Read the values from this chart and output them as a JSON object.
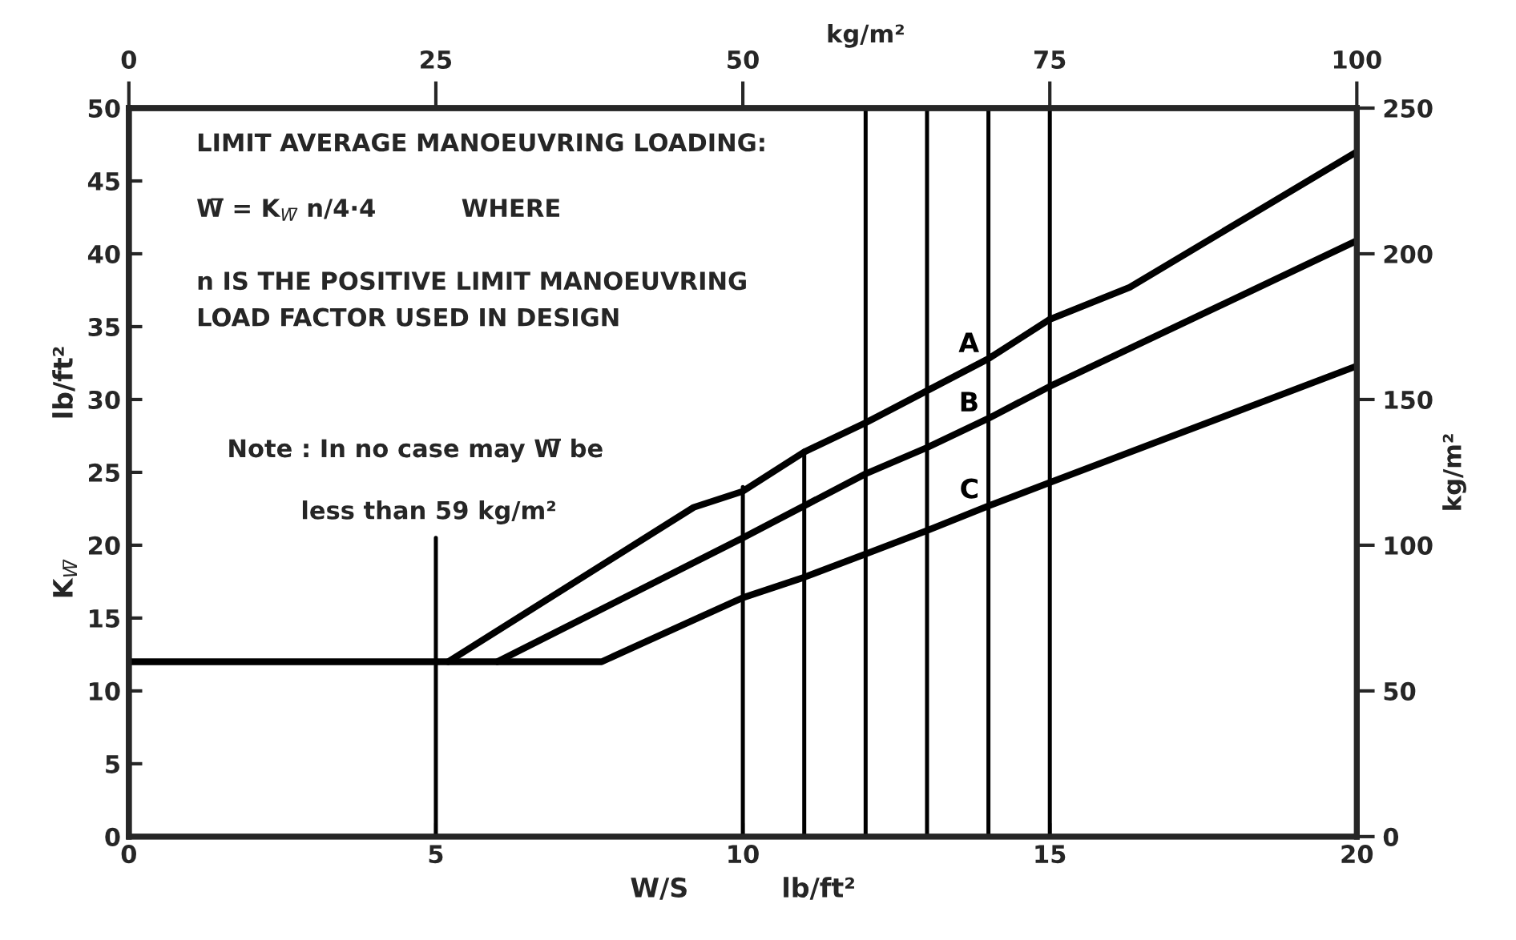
{
  "chart_data": {
    "type": "line",
    "xlabel": "W/S          lb/ft²",
    "ylabel": "K$_{W̅}$               lb/ft²",
    "x2label": "kg/m²",
    "y2label": "kg/m²",
    "xlim": [
      0,
      20
    ],
    "xticks": [
      0,
      5,
      10,
      15,
      20
    ],
    "ylim": [
      0,
      50
    ],
    "yticks": [
      0,
      5,
      10,
      15,
      20,
      25,
      30,
      35,
      40,
      45,
      50
    ],
    "x2lim": [
      0,
      100
    ],
    "x2ticks": [
      0,
      25,
      50,
      75,
      100
    ],
    "y2lim": [
      0,
      250
    ],
    "y2ticks": [
      0,
      50,
      100,
      150,
      200,
      250
    ],
    "grid": false,
    "legend": false,
    "marker": "none",
    "line_style": "solid",
    "series": [
      {
        "name": "A",
        "color": "#000000",
        "x": [
          5.2,
          9.2,
          10,
          11,
          12,
          13,
          14,
          15,
          16.3,
          20
        ],
        "values": [
          12,
          22.6,
          23.7,
          26.4,
          28.4,
          30.6,
          32.8,
          35.5,
          37.7,
          47
        ]
      },
      {
        "name": "B",
        "color": "#000000",
        "x": [
          6.0,
          10,
          11,
          12,
          13,
          14,
          15,
          20
        ],
        "values": [
          12,
          20.5,
          22.7,
          24.9,
          26.7,
          28.7,
          30.9,
          40.9
        ]
      },
      {
        "name": "C",
        "color": "#000000",
        "x": [
          0,
          7.7,
          10,
          11,
          12,
          13,
          14,
          15,
          20
        ],
        "values": [
          12,
          12,
          16.4,
          17.8,
          19.4,
          21.0,
          22.7,
          24.3,
          32.3
        ]
      },
      {
        "color": "#000000",
        "x": [
          5,
          5
        ],
        "values": [
          0,
          20.5
        ]
      },
      {
        "color": "#000000",
        "x": [
          10,
          10
        ],
        "values": [
          0,
          24
        ]
      },
      {
        "color": "#000000",
        "x": [
          11,
          11
        ],
        "values": [
          0,
          26.5
        ]
      }
    ],
    "ref_lines": [
      {
        "axis": "x",
        "value": 12
      },
      {
        "axis": "x",
        "value": 13
      },
      {
        "axis": "x",
        "value": 14
      },
      {
        "axis": "x",
        "value": 15
      }
    ],
    "annotations": [
      "LIMIT AVERAGE MANOEUVRING LOADING:",
      "W̅ = K$_{W̅}$ n/4·4          WHERE",
      "n IS THE POSITIVE LIMIT MANOEUVRING",
      "LOAD FACTOR USED IN DESIGN",
      "Note : In no case may W̅ be",
      "less than 59 kg/m²"
    ]
  }
}
